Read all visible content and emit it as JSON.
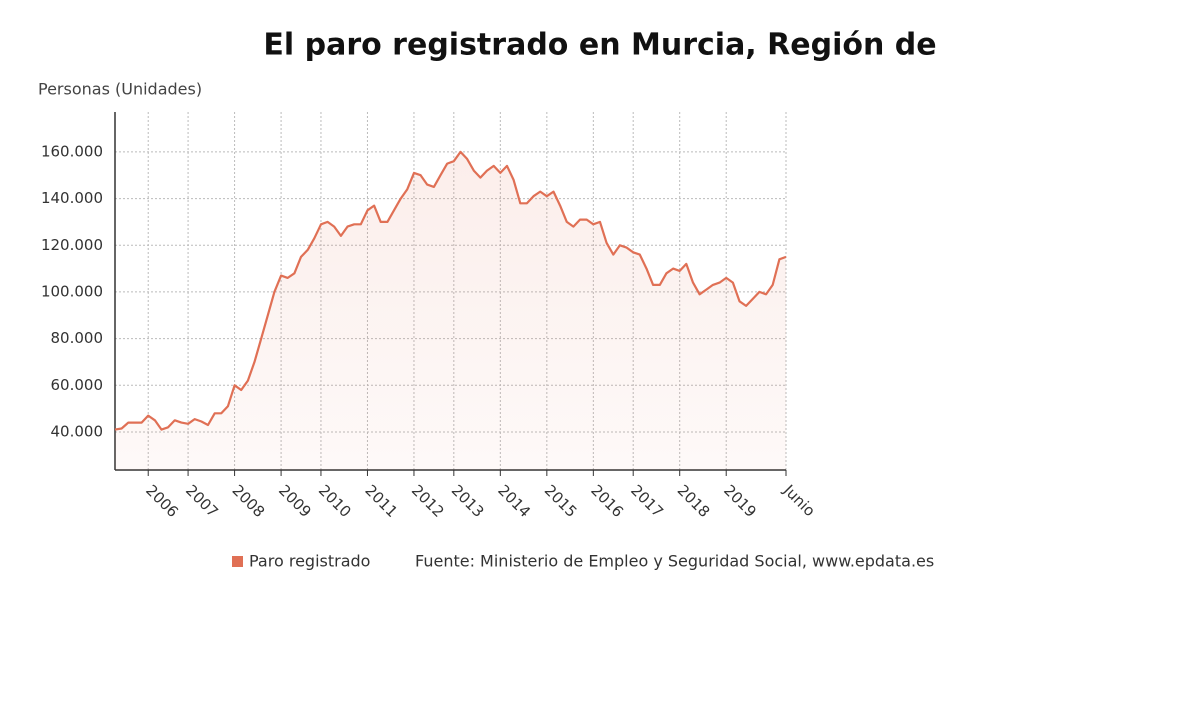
{
  "chart_data": {
    "type": "line",
    "title": "El paro registrado en Murcia, Región de",
    "y_axis_label": "Personas (Unidades)",
    "source": "Fuente: Ministerio de Empleo y Seguridad Social, www.epdata.es",
    "categories": [
      null,
      null,
      null,
      null,
      null,
      "2006",
      null,
      null,
      null,
      null,
      null,
      "2007",
      null,
      null,
      null,
      null,
      null,
      null,
      "2008",
      null,
      null,
      null,
      null,
      null,
      null,
      "2009",
      null,
      null,
      null,
      null,
      null,
      "2010",
      null,
      null,
      null,
      null,
      null,
      null,
      "2011",
      null,
      null,
      null,
      null,
      null,
      null,
      "2012",
      null,
      null,
      null,
      null,
      null,
      "2013",
      null,
      null,
      null,
      null,
      null,
      null,
      "2014",
      null,
      null,
      null,
      null,
      null,
      null,
      "2015",
      null,
      null,
      null,
      null,
      null,
      null,
      "2016",
      null,
      null,
      null,
      null,
      null,
      "2017",
      null,
      null,
      null,
      null,
      null,
      null,
      "2018",
      null,
      null,
      null,
      null,
      null,
      null,
      "2019",
      null,
      null,
      null,
      null,
      null,
      null,
      null,
      null,
      "Junio"
    ],
    "series": [
      {
        "name": "Paro registrado",
        "color": "#e07055",
        "values": [
          41000,
          41500,
          44000,
          44000,
          44000,
          47000,
          45000,
          41000,
          42000,
          45000,
          44000,
          43500,
          45500,
          44500,
          43000,
          48000,
          48000,
          51000,
          60000,
          58000,
          62000,
          70000,
          80000,
          90000,
          100000,
          107000,
          106000,
          108000,
          115000,
          118000,
          123000,
          129000,
          130000,
          128000,
          124000,
          128000,
          129000,
          129000,
          135000,
          137000,
          130000,
          130000,
          135000,
          140000,
          144000,
          151000,
          150000,
          146000,
          145000,
          150000,
          155000,
          156000,
          160000,
          157000,
          152000,
          149000,
          152000,
          154000,
          151000,
          154000,
          148000,
          138000,
          138000,
          141000,
          143000,
          141000,
          143000,
          137000,
          130000,
          128000,
          131000,
          131000,
          129000,
          130000,
          121000,
          116000,
          120000,
          119000,
          117000,
          116000,
          110000,
          103000,
          103000,
          108000,
          110000,
          109000,
          112000,
          104000,
          99000,
          101000,
          103000,
          104000,
          106000,
          104000,
          96000,
          94000,
          97000,
          100000,
          99000,
          103000,
          114000,
          115000
        ]
      }
    ],
    "ylim": [
      23700,
      177100
    ],
    "yticks": [
      {
        "value": 40000,
        "label": "40.000"
      },
      {
        "value": 60000,
        "label": "60.000"
      },
      {
        "value": 80000,
        "label": "80.000"
      },
      {
        "value": 100000,
        "label": "100.000"
      },
      {
        "value": 120000,
        "label": "120.000"
      },
      {
        "value": 140000,
        "label": "140.000"
      },
      {
        "value": 160000,
        "label": "160.000"
      }
    ],
    "grid": true
  }
}
